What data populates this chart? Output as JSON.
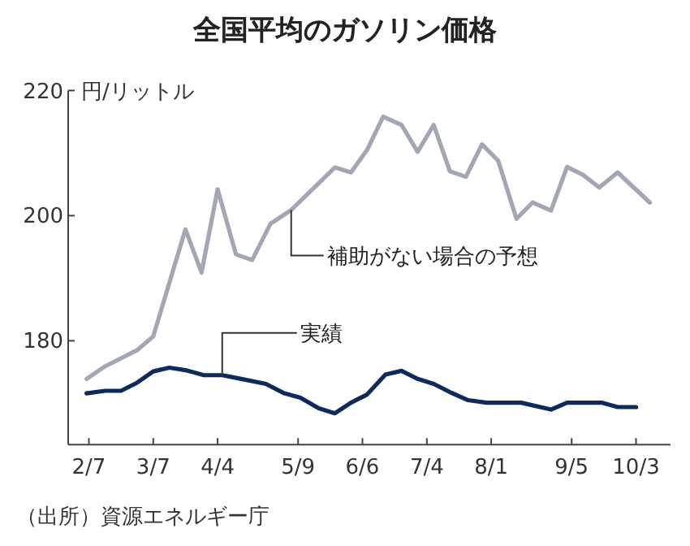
{
  "chart_data": {
    "type": "line",
    "title": "全国平均のガソリン価格",
    "ylabel": "円/リットル",
    "xlim": [
      "--01-29",
      "--10-18"
    ],
    "ylim": [
      163.4,
      220
    ],
    "yticks": [
      180,
      200,
      220
    ],
    "xticks": [
      {
        "value": "--02-07",
        "label": "2/7"
      },
      {
        "value": "--03-07",
        "label": "3/7"
      },
      {
        "value": "--04-04",
        "label": "4/4"
      },
      {
        "value": "--05-09",
        "label": "5/9"
      },
      {
        "value": "--06-06",
        "label": "6/6"
      },
      {
        "value": "--07-04",
        "label": "7/4"
      },
      {
        "value": "--08-01",
        "label": "8/1"
      },
      {
        "value": "--09-05",
        "label": "9/5"
      },
      {
        "value": "--10-03",
        "label": "10/3"
      }
    ],
    "grid": false,
    "marker": "none",
    "line_style": "solid",
    "series": [
      {
        "color": "#a3a6b4",
        "x": [
          "--02-06",
          "--02-14",
          "--02-28",
          "--03-07",
          "--03-21",
          "--03-28",
          "--04-04",
          "--04-12",
          "--04-19",
          "--04-27",
          "--05-06",
          "--05-25",
          "--06-01",
          "--06-08",
          "--06-15",
          "--06-23",
          "--06-30",
          "--07-07",
          "--07-14",
          "--07-21",
          "--07-28",
          "--08-04",
          "--08-12",
          "--08-19",
          "--08-27",
          "--09-03",
          "--09-10",
          "--09-17",
          "--09-25",
          "--10-09"
        ],
        "values": [
          173.9,
          175.9,
          178.5,
          180.7,
          197.8,
          190.9,
          204.2,
          193.8,
          192.9,
          198.7,
          200.9,
          207.7,
          206.9,
          210.5,
          215.8,
          214.5,
          210.2,
          214.5,
          207.1,
          206.2,
          211.4,
          208.8,
          199.5,
          202.1,
          200.8,
          207.8,
          206.5,
          204.5,
          206.9,
          202.1
        ]
      },
      {
        "color": "#0e2a5a",
        "x": [
          "--02-06",
          "--02-14",
          "--02-21",
          "--02-28",
          "--03-07",
          "--03-14",
          "--03-21",
          "--03-29",
          "--04-06",
          "--04-13",
          "--04-25",
          "--05-03",
          "--05-10",
          "--05-18",
          "--05-25",
          "--06-01",
          "--06-08",
          "--06-16",
          "--06-23",
          "--06-30",
          "--07-07",
          "--07-14",
          "--07-22",
          "--07-30",
          "--08-06",
          "--08-14",
          "--08-27",
          "--09-03",
          "--09-18",
          "--09-25",
          "--10-03"
        ],
        "values": [
          171.6,
          172.0,
          172.0,
          173.3,
          175.1,
          175.7,
          175.3,
          174.5,
          174.5,
          174.0,
          173.1,
          171.6,
          170.9,
          169.2,
          168.4,
          170.1,
          171.4,
          174.6,
          175.2,
          173.9,
          173.1,
          171.8,
          170.5,
          170.1,
          170.1,
          170.1,
          169.0,
          170.1,
          170.1,
          169.4,
          169.4
        ]
      }
    ],
    "annotations": [
      {
        "text": "補助がない場合の予想",
        "x": "--05-06",
        "y": 200.9
      },
      {
        "text": "実績",
        "x": "--04-06",
        "y": 174.5
      },
      "（出所）資源エネルギー庁"
    ]
  }
}
